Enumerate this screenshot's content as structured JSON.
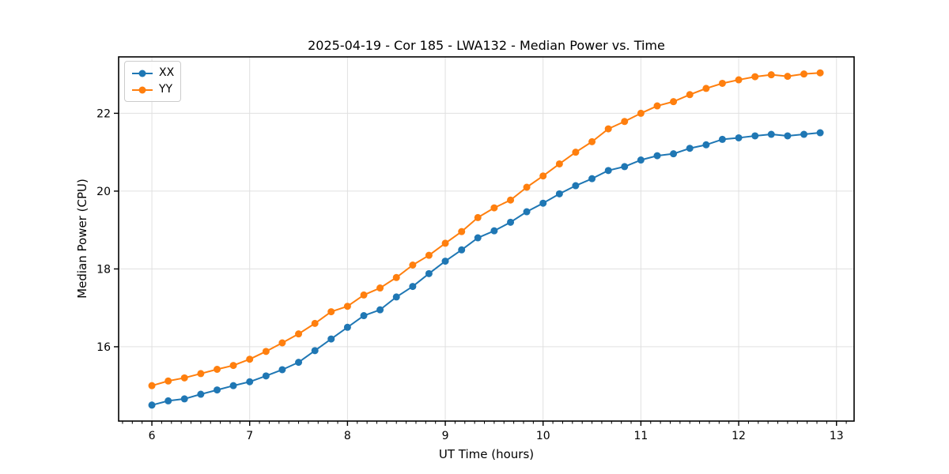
{
  "figure": {
    "title": "2025-04-19 - Cor 185 - LWA132 - Median Power vs. Time",
    "xlabel": "UT Time (hours)",
    "ylabel": "Median Power (CPU)",
    "background_color": "#ffffff",
    "grid_color": "#e0e0e0",
    "spine_color": "#000000",
    "tick_label_color": "#000000"
  },
  "legend": {
    "position": "upper-left",
    "items": [
      {
        "label": "XX",
        "color": "#1f77b4"
      },
      {
        "label": "YY",
        "color": "#ff7f0e"
      }
    ]
  },
  "chart_data": {
    "type": "line",
    "title": "2025-04-19 - Cor 185 - LWA132 - Median Power vs. Time",
    "xlabel": "UT Time (hours)",
    "ylabel": "Median Power (CPU)",
    "xlim": [
      5.66,
      13.18
    ],
    "ylim": [
      14.09,
      23.45
    ],
    "xticks": [
      6,
      7,
      8,
      9,
      10,
      11,
      12,
      13
    ],
    "yticks": [
      16,
      18,
      20,
      22
    ],
    "x_minor_tick_step": 0.1,
    "grid": true,
    "legend_position": "upper-left",
    "marker": "circle",
    "x": [
      6.0,
      6.167,
      6.333,
      6.5,
      6.667,
      6.833,
      7.0,
      7.167,
      7.333,
      7.5,
      7.667,
      7.833,
      8.0,
      8.167,
      8.333,
      8.5,
      8.667,
      8.833,
      9.0,
      9.167,
      9.333,
      9.5,
      9.667,
      9.833,
      10.0,
      10.167,
      10.333,
      10.5,
      10.667,
      10.833,
      11.0,
      11.167,
      11.333,
      11.5,
      11.667,
      11.833,
      12.0,
      12.167,
      12.333,
      12.5,
      12.667,
      12.833
    ],
    "series": [
      {
        "name": "XX",
        "color": "#1f77b4",
        "values": [
          14.5,
          14.61,
          14.66,
          14.78,
          14.89,
          15.0,
          15.1,
          15.25,
          15.41,
          15.6,
          15.9,
          16.2,
          16.5,
          16.8,
          16.95,
          17.28,
          17.55,
          17.88,
          18.2,
          18.49,
          18.8,
          18.98,
          19.2,
          19.47,
          19.69,
          19.93,
          20.14,
          20.32,
          20.53,
          20.63,
          20.8,
          20.91,
          20.96,
          21.1,
          21.19,
          21.33,
          21.37,
          21.42,
          21.46,
          21.42,
          21.46,
          21.5
        ]
      },
      {
        "name": "YY",
        "color": "#ff7f0e",
        "values": [
          15.0,
          15.12,
          15.2,
          15.31,
          15.42,
          15.52,
          15.68,
          15.88,
          16.1,
          16.33,
          16.6,
          16.9,
          17.04,
          17.33,
          17.51,
          17.78,
          18.1,
          18.35,
          18.66,
          18.96,
          19.32,
          19.57,
          19.77,
          20.1,
          20.39,
          20.7,
          21.0,
          21.27,
          21.6,
          21.79,
          22.0,
          22.19,
          22.3,
          22.48,
          22.64,
          22.77,
          22.86,
          22.94,
          22.99,
          22.95,
          23.01,
          23.04
        ]
      }
    ]
  }
}
